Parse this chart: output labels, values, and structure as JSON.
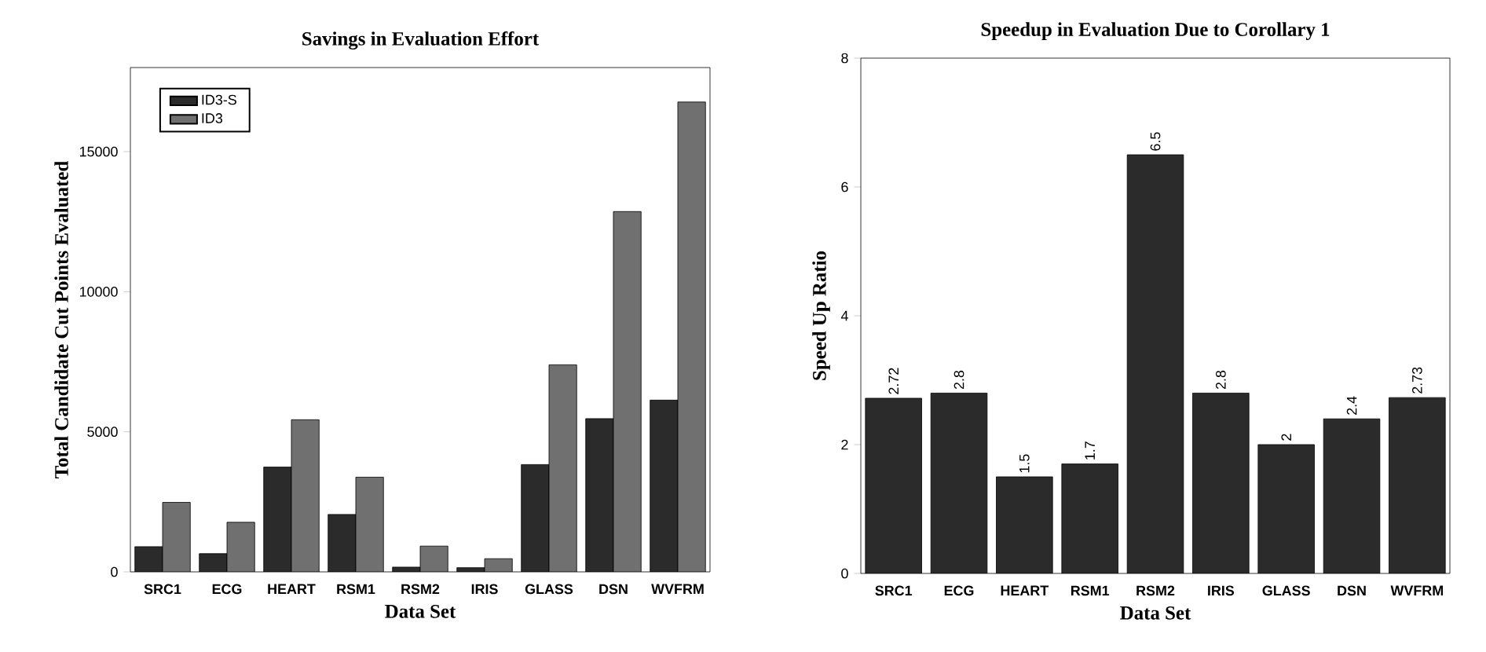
{
  "chart_data": [
    {
      "type": "bar",
      "title": "Savings in Evaluation Effort",
      "xlabel": "Data Set",
      "ylabel": "Total Candidate Cut Points Evaluated",
      "categories": [
        "SRC1",
        "ECG",
        "HEART",
        "RSM1",
        "RSM2",
        "IRIS",
        "GLASS",
        "DSN",
        "WVFRM"
      ],
      "series": [
        {
          "name": "ID3-S",
          "color": "#2b2b2b",
          "values": [
            900,
            650,
            3740,
            2050,
            170,
            150,
            3830,
            5470,
            6130
          ]
        },
        {
          "name": "ID3",
          "color": "#707070",
          "values": [
            2480,
            1770,
            5430,
            3380,
            920,
            470,
            7390,
            12860,
            16770
          ]
        }
      ],
      "ylim": [
        0,
        18000
      ],
      "yticks": [
        0,
        5000,
        10000,
        15000
      ],
      "legend": "top left",
      "grid": false
    },
    {
      "type": "bar",
      "title": "Speedup in Evaluation Due to Corollary 1",
      "xlabel": "Data Set",
      "ylabel": "Speed Up Ratio",
      "categories": [
        "SRC1",
        "ECG",
        "HEART",
        "RSM1",
        "RSM2",
        "IRIS",
        "GLASS",
        "DSN",
        "WVFRM"
      ],
      "values": [
        2.72,
        2.8,
        1.5,
        1.7,
        6.5,
        2.8,
        2,
        2.4,
        2.73
      ],
      "color": "#2b2b2b",
      "ylim": [
        0,
        8
      ],
      "yticks": [
        0,
        2,
        4,
        6,
        8
      ],
      "data_labels": true,
      "legend": false,
      "grid": false
    }
  ]
}
